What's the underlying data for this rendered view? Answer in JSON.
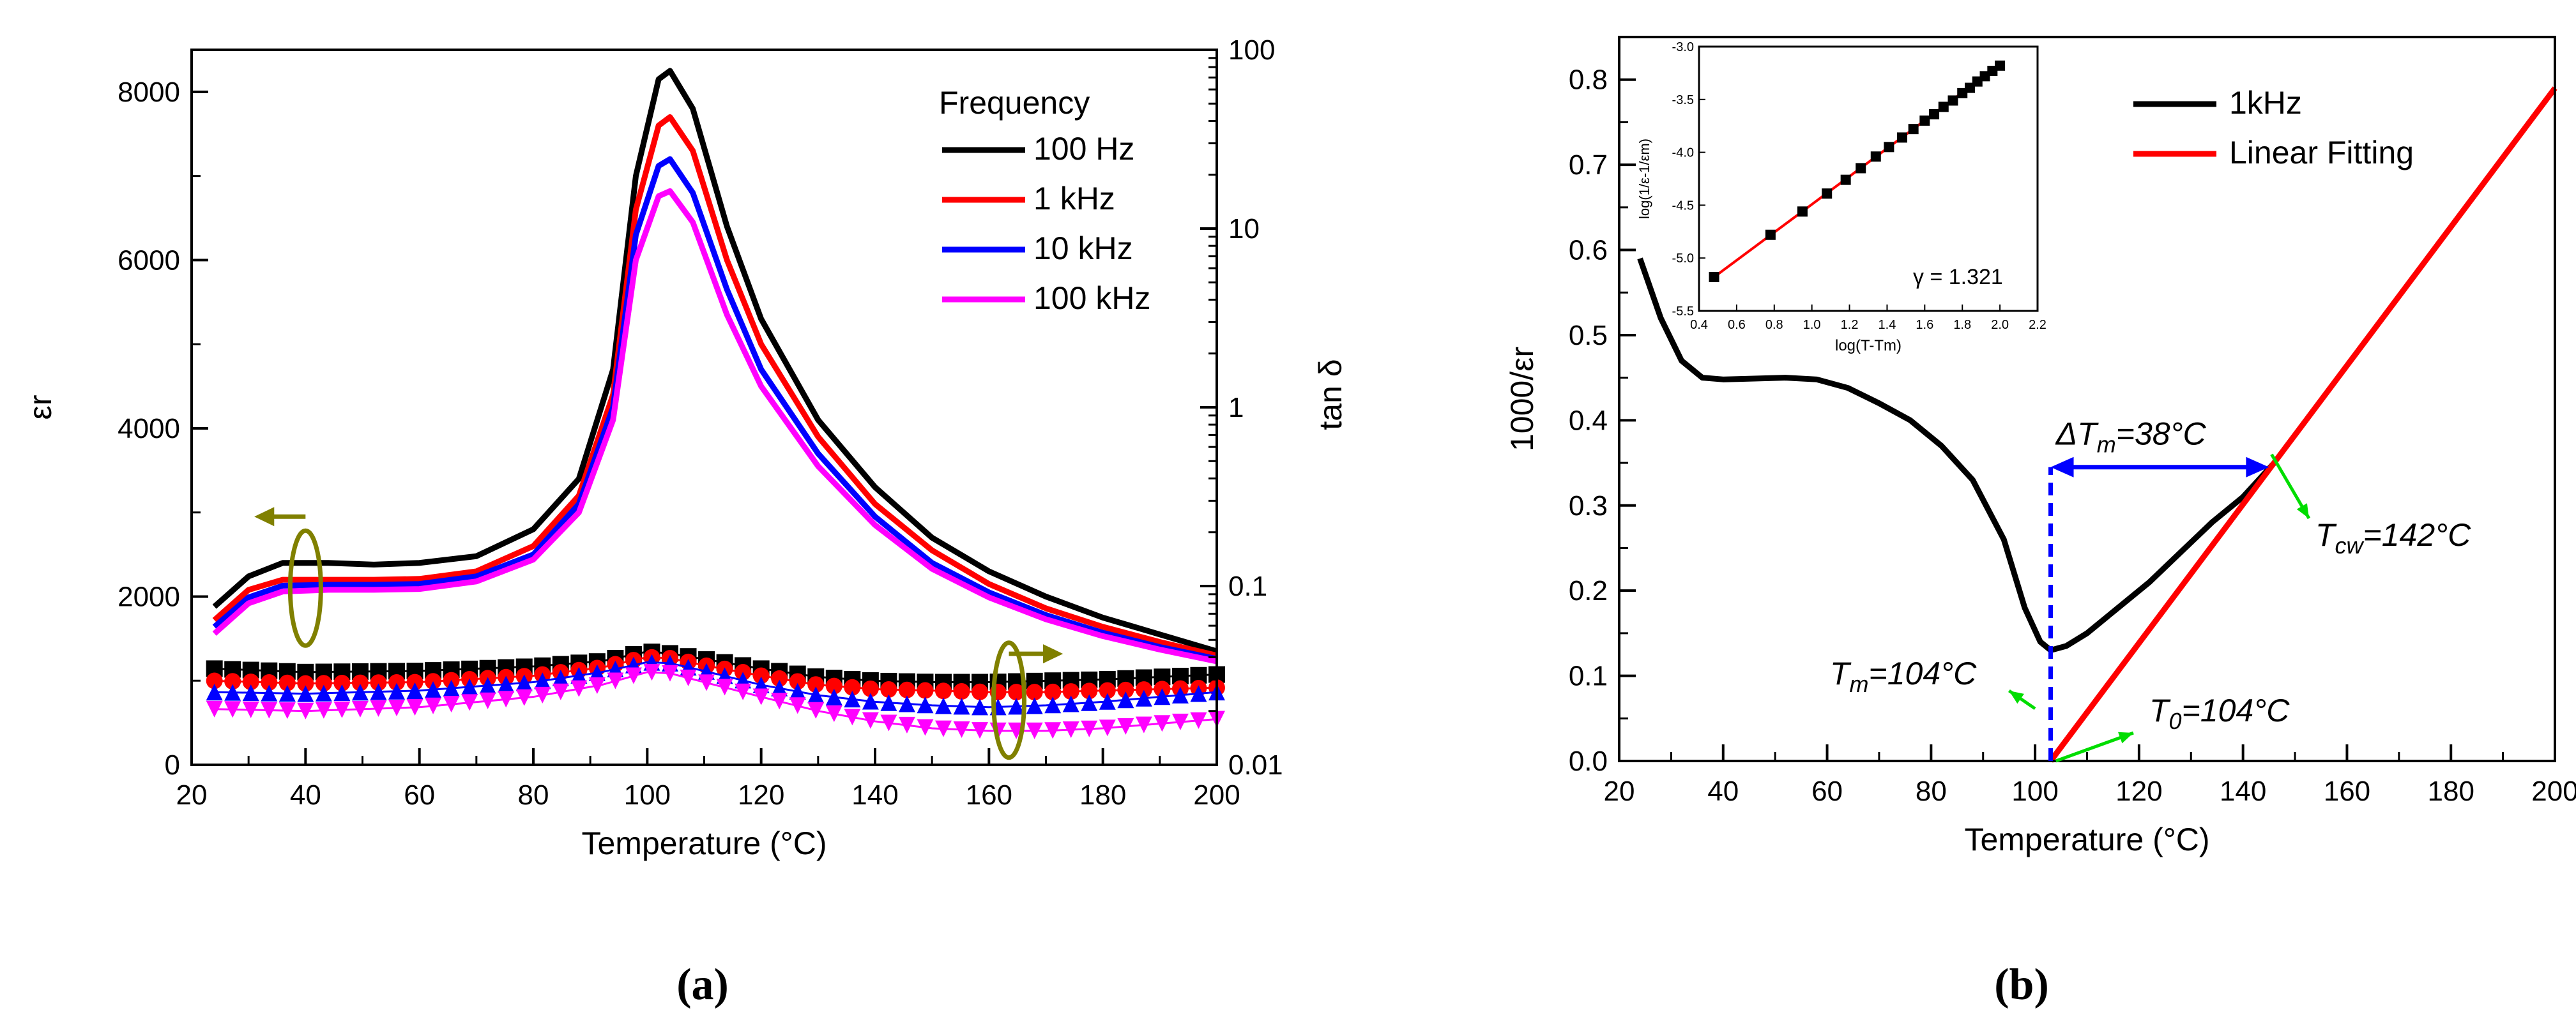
{
  "chart_data": [
    {
      "id": "a",
      "type": "line",
      "panel_label": "(a)",
      "xlabel": "Temperature (°C)",
      "ylabel_left": "εr",
      "ylabel_right": "tan δ",
      "xlim": [
        20,
        200
      ],
      "ylim_left": [
        0,
        8500
      ],
      "ylim_right_log": [
        0.01,
        100
      ],
      "x_ticks": [
        20,
        40,
        60,
        80,
        100,
        120,
        140,
        160,
        180,
        200
      ],
      "y_left_ticks": [
        0,
        2000,
        4000,
        6000,
        8000
      ],
      "y_right_ticks": [
        0.01,
        0.1,
        1,
        10,
        100
      ],
      "y_right_tick_labels": [
        "0.01",
        "0.1",
        "1",
        "10",
        "100"
      ],
      "legend_title": "Frequency",
      "series": [
        {
          "name": "100 Hz",
          "color": "#000000",
          "x": [
            24,
            30,
            36,
            44,
            52,
            60,
            70,
            80,
            88,
            94,
            98,
            102,
            104,
            108,
            114,
            120,
            130,
            140,
            150,
            160,
            170,
            180,
            190,
            200
          ],
          "y": [
            1880,
            2240,
            2400,
            2400,
            2380,
            2400,
            2480,
            2800,
            3400,
            4700,
            7000,
            8150,
            8250,
            7800,
            6400,
            5300,
            4100,
            3300,
            2700,
            2300,
            2000,
            1750,
            1550,
            1350
          ]
        },
        {
          "name": "1 kHz",
          "color": "#ff0000",
          "x": [
            24,
            30,
            36,
            44,
            52,
            60,
            70,
            80,
            88,
            94,
            98,
            102,
            104,
            108,
            114,
            120,
            130,
            140,
            150,
            160,
            170,
            180,
            190,
            200
          ],
          "y": [
            1720,
            2080,
            2200,
            2200,
            2200,
            2210,
            2300,
            2600,
            3200,
            4400,
            6600,
            7600,
            7700,
            7300,
            6000,
            5000,
            3900,
            3100,
            2550,
            2150,
            1860,
            1640,
            1460,
            1300
          ]
        },
        {
          "name": "10 kHz",
          "color": "#0000ff",
          "x": [
            24,
            30,
            36,
            44,
            52,
            60,
            70,
            80,
            88,
            94,
            98,
            102,
            104,
            108,
            114,
            120,
            130,
            140,
            150,
            160,
            170,
            180,
            190,
            200
          ],
          "y": [
            1640,
            1990,
            2130,
            2140,
            2140,
            2150,
            2240,
            2500,
            3100,
            4250,
            6300,
            7120,
            7200,
            6800,
            5650,
            4700,
            3700,
            2950,
            2400,
            2050,
            1780,
            1570,
            1400,
            1260
          ]
        },
        {
          "name": "100 kHz",
          "color": "#ff00ff",
          "x": [
            24,
            30,
            36,
            44,
            52,
            60,
            70,
            80,
            88,
            94,
            98,
            102,
            104,
            108,
            114,
            120,
            130,
            140,
            150,
            160,
            170,
            180,
            190,
            200
          ],
          "y": [
            1560,
            1920,
            2060,
            2080,
            2080,
            2090,
            2180,
            2440,
            3000,
            4100,
            6000,
            6760,
            6820,
            6450,
            5350,
            4500,
            3550,
            2850,
            2330,
            1990,
            1730,
            1530,
            1370,
            1230
          ]
        }
      ],
      "tan_delta_series": [
        {
          "name": "100 Hz",
          "color": "#000000",
          "marker": "square",
          "x": [
            24,
            40,
            60,
            80,
            92,
            100,
            104,
            110,
            120,
            130,
            140,
            150,
            160,
            170,
            180,
            190,
            200
          ],
          "y": [
            0.0345,
            0.033,
            0.0335,
            0.0355,
            0.038,
            0.043,
            0.042,
            0.039,
            0.0345,
            0.031,
            0.0295,
            0.029,
            0.029,
            0.0295,
            0.03,
            0.031,
            0.032
          ]
        },
        {
          "name": "1 kHz",
          "color": "#ff0000",
          "marker": "circle",
          "x": [
            24,
            40,
            60,
            80,
            92,
            100,
            104,
            110,
            120,
            130,
            140,
            150,
            160,
            170,
            180,
            190,
            200
          ],
          "y": [
            0.0295,
            0.0285,
            0.029,
            0.0315,
            0.035,
            0.04,
            0.0395,
            0.036,
            0.0315,
            0.028,
            0.0265,
            0.026,
            0.0255,
            0.0255,
            0.026,
            0.0265,
            0.027
          ]
        },
        {
          "name": "10 kHz",
          "color": "#0000ff",
          "marker": "triangle-up",
          "x": [
            24,
            40,
            60,
            80,
            92,
            100,
            104,
            110,
            120,
            130,
            140,
            150,
            160,
            170,
            180,
            190,
            200
          ],
          "y": [
            0.0255,
            0.025,
            0.026,
            0.029,
            0.033,
            0.0375,
            0.037,
            0.0335,
            0.028,
            0.0245,
            0.0225,
            0.0215,
            0.021,
            0.0215,
            0.0225,
            0.024,
            0.0255
          ]
        },
        {
          "name": "100 kHz",
          "color": "#ff00ff",
          "marker": "triangle-down",
          "x": [
            24,
            40,
            60,
            80,
            92,
            100,
            104,
            110,
            120,
            130,
            140,
            150,
            160,
            170,
            180,
            190,
            200
          ],
          "y": [
            0.0205,
            0.02,
            0.021,
            0.024,
            0.028,
            0.033,
            0.0325,
            0.029,
            0.024,
            0.02,
            0.0175,
            0.016,
            0.0155,
            0.0155,
            0.016,
            0.017,
            0.018
          ]
        }
      ],
      "annotation_colors": {
        "axis_indicator": "#808000"
      }
    },
    {
      "id": "b",
      "type": "line",
      "panel_label": "(b)",
      "xlabel": "Temperature (°C)",
      "ylabel": "1000/εr",
      "xlim": [
        20,
        200
      ],
      "ylim": [
        0,
        0.85
      ],
      "x_ticks": [
        20,
        40,
        60,
        80,
        100,
        120,
        140,
        160,
        180,
        200
      ],
      "y_ticks": [
        0.0,
        0.1,
        0.2,
        0.3,
        0.4,
        0.5,
        0.6,
        0.7,
        0.8
      ],
      "y_tick_labels": [
        "0.0",
        "0.1",
        "0.2",
        "0.3",
        "0.4",
        "0.5",
        "0.6",
        "0.7",
        "0.8"
      ],
      "series": [
        {
          "name": "1kHz",
          "color": "#000000",
          "x": [
            24,
            28,
            32,
            36,
            40,
            46,
            52,
            58,
            64,
            70,
            76,
            82,
            88,
            94,
            98,
            101,
            103,
            106,
            110,
            116,
            122,
            128,
            134,
            140,
            146
          ],
          "y": [
            0.59,
            0.52,
            0.47,
            0.45,
            0.448,
            0.449,
            0.45,
            0.448,
            0.438,
            0.42,
            0.4,
            0.37,
            0.33,
            0.26,
            0.18,
            0.14,
            0.13,
            0.135,
            0.15,
            0.18,
            0.21,
            0.245,
            0.28,
            0.31,
            0.35
          ]
        },
        {
          "name": "Linear Fitting",
          "color": "#ff0000",
          "x": [
            103,
            200
          ],
          "y": [
            0.0,
            0.79
          ]
        }
      ],
      "annotations": [
        {
          "text_main": "T",
          "text_sub": "m",
          "text_tail": "=104°C"
        },
        {
          "text_main": "T",
          "text_sub": "0",
          "text_tail": "=104°C"
        },
        {
          "text_main": "T",
          "text_sub": "cw",
          "text_tail": "=142°C"
        },
        {
          "text_main": "ΔT",
          "text_sub": "m",
          "text_tail": "=38°C"
        }
      ],
      "annotation_colors": {
        "arrow": "#00dd00",
        "delta": "#0000ff"
      },
      "inset": {
        "type": "scatter",
        "xlabel": "log(T-Tm)",
        "ylabel": "log(1/ε-1/εm)",
        "xlim": [
          0.4,
          2.2
        ],
        "ylim": [
          -5.5,
          -3.0
        ],
        "x_ticks": [
          0.4,
          0.6,
          0.8,
          1.0,
          1.2,
          1.4,
          1.6,
          1.8,
          2.0,
          2.2
        ],
        "x_tick_labels": [
          "0.4",
          "0.6",
          "0.8",
          "1.0",
          "1.2",
          "1.4",
          "1.6",
          "1.8",
          "2.0",
          "2.2"
        ],
        "y_ticks": [
          -5.5,
          -5.0,
          -4.5,
          -4.0,
          -3.5,
          -3.0
        ],
        "y_tick_labels": [
          "-5.5",
          "-5.0",
          "-4.5",
          "-4.0",
          "-3.5",
          "-3.0"
        ],
        "gamma_label": "γ = 1.321",
        "points_x": [
          0.48,
          0.78,
          0.95,
          1.08,
          1.18,
          1.26,
          1.34,
          1.41,
          1.48,
          1.54,
          1.6,
          1.65,
          1.7,
          1.75,
          1.8,
          1.84,
          1.88,
          1.92,
          1.96,
          2.0
        ],
        "points_y": [
          -5.18,
          -4.78,
          -4.56,
          -4.39,
          -4.26,
          -4.15,
          -4.04,
          -3.95,
          -3.86,
          -3.78,
          -3.7,
          -3.64,
          -3.57,
          -3.51,
          -3.44,
          -3.39,
          -3.33,
          -3.28,
          -3.23,
          -3.18
        ],
        "fit_x": [
          0.48,
          2.0
        ],
        "fit_y": [
          -5.18,
          -3.17
        ]
      }
    }
  ]
}
